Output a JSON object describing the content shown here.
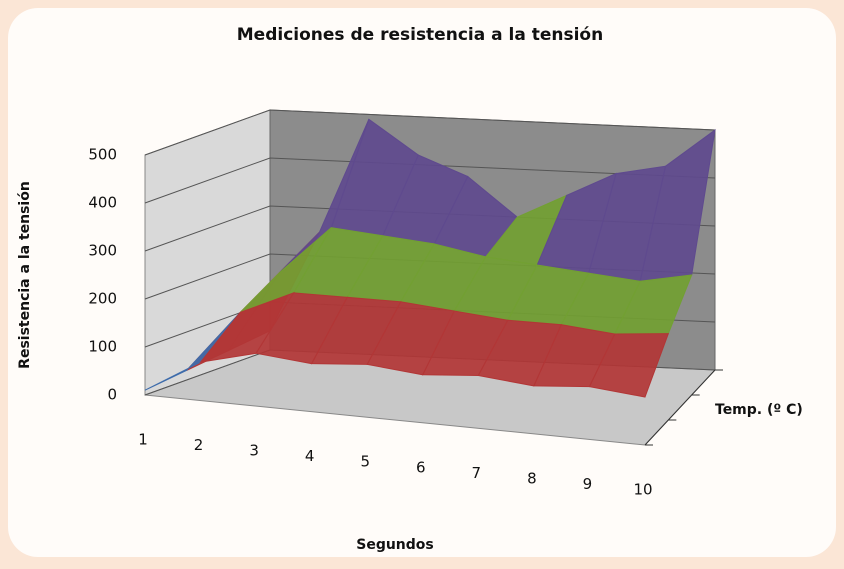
{
  "chart_data": {
    "type": "surface",
    "title": "Mediciones de resistencia a la tensión",
    "x_label": "Segundos",
    "y_label": "Resistencia a la tensión",
    "z_label": "Temp. (º C)",
    "categories": [
      "1",
      "2",
      "3",
      "4",
      "5",
      "6",
      "7",
      "8",
      "9",
      "10"
    ],
    "series": [
      {
        "values": [
          10,
          80,
          110,
          100,
          110,
          100,
          110,
          100,
          110,
          100
        ]
      },
      {
        "values": [
          20,
          150,
          200,
          200,
          200,
          190,
          180,
          180,
          170,
          180
        ]
      },
      {
        "values": [
          30,
          200,
          300,
          290,
          280,
          260,
          250,
          240,
          230,
          250
        ]
      },
      {
        "values": [
          40,
          250,
          490,
          420,
          380,
          300,
          350,
          400,
          420,
          500
        ]
      }
    ],
    "ylim": [
      0,
      500
    ],
    "yticks": [
      0,
      100,
      200,
      300,
      400,
      500
    ],
    "band_colors": [
      "#3e6cab",
      "#b23636",
      "#72a032",
      "#5f4a8e",
      "#3ab8d0"
    ],
    "grid": true
  }
}
